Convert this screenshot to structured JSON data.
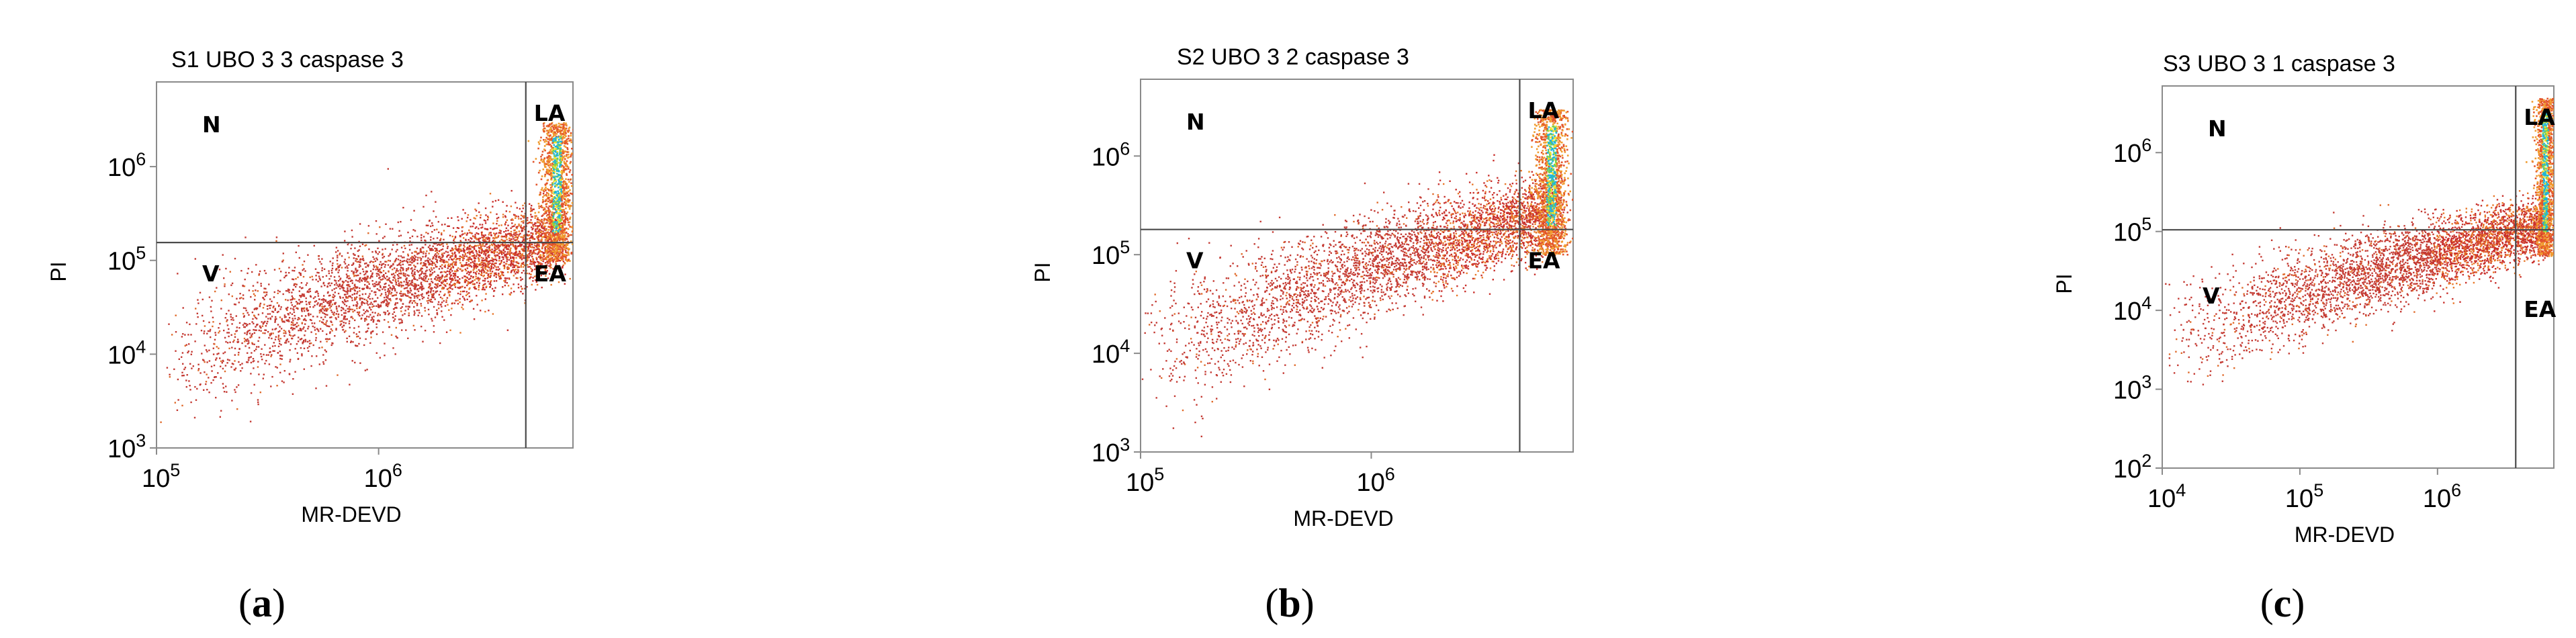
{
  "figure": {
    "panels": [
      {
        "id": "a",
        "caption_letter": "a"
      },
      {
        "id": "b",
        "caption_letter": "b"
      },
      {
        "id": "c",
        "caption_letter": "c"
      }
    ]
  },
  "chart_data": [
    {
      "type": "scatter",
      "title": "S1 UBO 3 3  caspase 3",
      "xlabel": "MR-DEVD",
      "ylabel": "PI",
      "xscale": "log",
      "yscale": "log",
      "xlim": [
        100000,
        7500000
      ],
      "ylim": [
        1000,
        8000000
      ],
      "x_ticks": [
        {
          "base": "10",
          "exp": "5",
          "value": 100000
        },
        {
          "base": "10",
          "exp": "6",
          "value": 1000000
        }
      ],
      "y_ticks": [
        {
          "base": "10",
          "exp": "3",
          "value": 1000
        },
        {
          "base": "10",
          "exp": "4",
          "value": 10000
        },
        {
          "base": "10",
          "exp": "5",
          "value": 100000
        },
        {
          "base": "10",
          "exp": "6",
          "value": 1000000
        }
      ],
      "gates": {
        "x": 4600000,
        "y": 155000
      },
      "quadrants": {
        "top_left": "N",
        "top_right": "LA",
        "bottom_left": "V",
        "bottom_right": "EA"
      },
      "population": {
        "trend": [
          [
            100000,
            8000
          ],
          [
            1000000,
            55000
          ],
          [
            5000000,
            150000
          ]
        ],
        "bright_cluster": {
          "x": 6300000,
          "y_range": [
            100000,
            3000000
          ]
        }
      }
    },
    {
      "type": "scatter",
      "title": "S2 UBO 3 2 caspase 3",
      "xlabel": "MR-DEVD",
      "ylabel": "PI",
      "xscale": "log",
      "yscale": "log",
      "xlim": [
        100000,
        7500000
      ],
      "ylim": [
        1000,
        6000000
      ],
      "x_ticks": [
        {
          "base": "10",
          "exp": "5",
          "value": 100000
        },
        {
          "base": "10",
          "exp": "6",
          "value": 1000000
        }
      ],
      "y_ticks": [
        {
          "base": "10",
          "exp": "3",
          "value": 1000
        },
        {
          "base": "10",
          "exp": "4",
          "value": 10000
        },
        {
          "base": "10",
          "exp": "5",
          "value": 100000
        },
        {
          "base": "10",
          "exp": "6",
          "value": 1000000
        }
      ],
      "gates": {
        "x": 4400000,
        "y": 180000
      },
      "quadrants": {
        "top_left": "N",
        "top_right": "LA",
        "bottom_left": "V",
        "bottom_right": "EA"
      },
      "population": {
        "trend": [
          [
            100000,
            10000
          ],
          [
            1000000,
            80000
          ],
          [
            5000000,
            250000
          ]
        ],
        "bright_cluster": {
          "x": 6000000,
          "y_range": [
            100000,
            3000000
          ]
        }
      }
    },
    {
      "type": "scatter",
      "title": "S3 UBO 3 1 caspase 3",
      "xlabel": "MR-DEVD",
      "ylabel": "PI",
      "xscale": "log",
      "yscale": "log",
      "xlim": [
        10000,
        7000000
      ],
      "ylim": [
        100,
        7000000
      ],
      "x_ticks": [
        {
          "base": "10",
          "exp": "4",
          "value": 10000
        },
        {
          "base": "10",
          "exp": "5",
          "value": 100000
        },
        {
          "base": "10",
          "exp": "6",
          "value": 1000000
        }
      ],
      "y_ticks": [
        {
          "base": "10",
          "exp": "2",
          "value": 100
        },
        {
          "base": "10",
          "exp": "3",
          "value": 1000
        },
        {
          "base": "10",
          "exp": "4",
          "value": 10000
        },
        {
          "base": "10",
          "exp": "5",
          "value": 100000
        },
        {
          "base": "10",
          "exp": "6",
          "value": 1000000
        }
      ],
      "gates": {
        "x": 3700000,
        "y": 105000
      },
      "quadrants": {
        "top_left": "N",
        "top_right": "LA",
        "bottom_left": "V",
        "bottom_right": "EA"
      },
      "population": {
        "trend": [
          [
            30000,
            8000
          ],
          [
            500000,
            40000
          ],
          [
            4000000,
            100000
          ]
        ],
        "bright_cluster": {
          "x": 6000000,
          "y_range": [
            50000,
            5000000
          ]
        }
      }
    }
  ]
}
